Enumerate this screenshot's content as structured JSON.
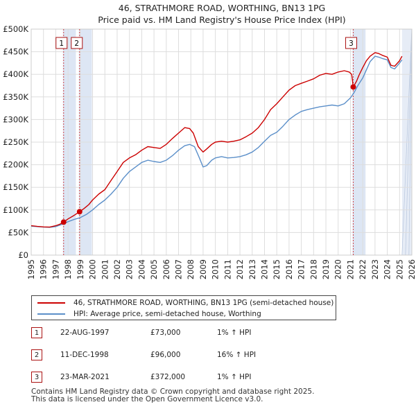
{
  "chart_data": {
    "type": "line",
    "title": "46, STRATHMORE ROAD, WORTHING, BN13 1PG",
    "subtitle": "Price paid vs. HM Land Registry's House Price Index (HPI)",
    "xlim": [
      1995,
      2026
    ],
    "ylim": [
      0,
      500000
    ],
    "x_ticks": [
      "1995",
      "1996",
      "1997",
      "1998",
      "1999",
      "2000",
      "2001",
      "2002",
      "2003",
      "2004",
      "2005",
      "2006",
      "2007",
      "2008",
      "2009",
      "2010",
      "2011",
      "2012",
      "2013",
      "2014",
      "2015",
      "2016",
      "2017",
      "2018",
      "2019",
      "2020",
      "2021",
      "2022",
      "2023",
      "2024",
      "2025",
      "2026"
    ],
    "y_ticks": [
      {
        "value": 0,
        "label": "£0"
      },
      {
        "value": 50000,
        "label": "£50K"
      },
      {
        "value": 100000,
        "label": "£100K"
      },
      {
        "value": 150000,
        "label": "£150K"
      },
      {
        "value": 200000,
        "label": "£200K"
      },
      {
        "value": 250000,
        "label": "£250K"
      },
      {
        "value": 300000,
        "label": "£300K"
      },
      {
        "value": 350000,
        "label": "£350K"
      },
      {
        "value": 400000,
        "label": "£400K"
      },
      {
        "value": 450000,
        "label": "£450K"
      },
      {
        "value": 500000,
        "label": "£500K"
      }
    ],
    "series": [
      {
        "name": "46, STRATHMORE ROAD, WORTHING, BN13 1PG (semi-detached house)",
        "color": "#cc0000",
        "x": [
          1995.0,
          1995.5,
          1996.0,
          1996.5,
          1997.0,
          1997.3,
          1997.64,
          1998.0,
          1998.5,
          1998.94,
          1999.3,
          1999.7,
          2000.0,
          2000.5,
          2001.0,
          2001.5,
          2002.0,
          2002.5,
          2003.0,
          2003.5,
          2004.0,
          2004.5,
          2005.0,
          2005.5,
          2006.0,
          2006.5,
          2007.0,
          2007.5,
          2007.9,
          2008.2,
          2008.6,
          2009.0,
          2009.3,
          2009.7,
          2010.0,
          2010.5,
          2011.0,
          2011.5,
          2012.0,
          2012.5,
          2013.0,
          2013.5,
          2014.0,
          2014.5,
          2015.0,
          2015.5,
          2016.0,
          2016.5,
          2017.0,
          2017.5,
          2018.0,
          2018.5,
          2019.0,
          2019.5,
          2020.0,
          2020.5,
          2020.9,
          2021.1,
          2021.23,
          2021.5,
          2021.7,
          2022.0,
          2022.3,
          2022.6,
          2023.0,
          2023.3,
          2023.6,
          2024.0,
          2024.3,
          2024.6,
          2025.0,
          2025.2
        ],
        "values": [
          65000,
          63500,
          62500,
          62000,
          65000,
          68000,
          73000,
          80000,
          88000,
          96000,
          103000,
          112000,
          122000,
          135000,
          145000,
          165000,
          185000,
          205000,
          215000,
          222000,
          232000,
          240000,
          238000,
          236000,
          245000,
          258000,
          270000,
          282000,
          280000,
          270000,
          240000,
          228000,
          235000,
          245000,
          250000,
          252000,
          250000,
          252000,
          255000,
          262000,
          270000,
          282000,
          300000,
          322000,
          335000,
          350000,
          365000,
          375000,
          380000,
          385000,
          390000,
          398000,
          402000,
          400000,
          405000,
          408000,
          405000,
          400000,
          372000,
          385000,
          398000,
          415000,
          430000,
          440000,
          448000,
          446000,
          442000,
          438000,
          420000,
          418000,
          430000,
          440000
        ]
      },
      {
        "name": "HPI: Average price, semi-detached house, Worthing",
        "color": "#5b8fc9",
        "x": [
          1995.0,
          1995.5,
          1996.0,
          1996.5,
          1997.0,
          1997.5,
          1998.0,
          1998.5,
          1999.0,
          1999.5,
          2000.0,
          2000.5,
          2001.0,
          2001.5,
          2002.0,
          2002.5,
          2003.0,
          2003.5,
          2004.0,
          2004.5,
          2005.0,
          2005.5,
          2006.0,
          2006.5,
          2007.0,
          2007.5,
          2007.9,
          2008.3,
          2008.7,
          2009.0,
          2009.3,
          2009.7,
          2010.0,
          2010.5,
          2011.0,
          2011.5,
          2012.0,
          2012.5,
          2013.0,
          2013.5,
          2014.0,
          2014.5,
          2015.0,
          2015.5,
          2016.0,
          2016.5,
          2017.0,
          2017.5,
          2018.0,
          2018.5,
          2019.0,
          2019.5,
          2020.0,
          2020.5,
          2021.0,
          2021.3,
          2021.6,
          2022.0,
          2022.3,
          2022.6,
          2023.0,
          2023.3,
          2023.6,
          2024.0,
          2024.3,
          2024.6,
          2025.0,
          2025.2
        ],
        "values": [
          64000,
          63000,
          62000,
          61500,
          63000,
          68000,
          74000,
          79000,
          83000,
          90000,
          100000,
          112000,
          122000,
          135000,
          150000,
          170000,
          185000,
          195000,
          205000,
          210000,
          207000,
          205000,
          210000,
          220000,
          232000,
          242000,
          245000,
          240000,
          215000,
          195000,
          198000,
          210000,
          215000,
          218000,
          215000,
          216000,
          218000,
          222000,
          228000,
          238000,
          252000,
          265000,
          272000,
          285000,
          300000,
          310000,
          318000,
          322000,
          325000,
          328000,
          330000,
          332000,
          330000,
          335000,
          348000,
          360000,
          375000,
          392000,
          410000,
          428000,
          440000,
          438000,
          435000,
          432000,
          415000,
          412000,
          425000,
          432000
        ]
      }
    ],
    "sales": [
      {
        "label": "1",
        "x": 1997.64,
        "value": 73000
      },
      {
        "label": "2",
        "x": 1998.94,
        "value": 96000
      },
      {
        "label": "3",
        "x": 2021.23,
        "value": 372000
      }
    ],
    "sale_colors": {
      "band": "#dde6f4",
      "marker": "#cc0000",
      "vline": "#cc0000"
    }
  },
  "legend": {
    "items": [
      {
        "label": "46, STRATHMORE ROAD, WORTHING, BN13 1PG (semi-detached house)",
        "color": "#cc0000"
      },
      {
        "label": "HPI: Average price, semi-detached house, Worthing",
        "color": "#5b8fc9"
      }
    ]
  },
  "transactions": [
    {
      "num": "1",
      "date": "22-AUG-1997",
      "price": "£73,000",
      "hpi": "1% ↑ HPI"
    },
    {
      "num": "2",
      "date": "11-DEC-1998",
      "price": "£96,000",
      "hpi": "16% ↑ HPI"
    },
    {
      "num": "3",
      "date": "23-MAR-2021",
      "price": "£372,000",
      "hpi": "1% ↑ HPI"
    }
  ],
  "footer": {
    "line1": "Contains HM Land Registry data © Crown copyright and database right 2025.",
    "line2": "This data is licensed under the Open Government Licence v3.0."
  }
}
